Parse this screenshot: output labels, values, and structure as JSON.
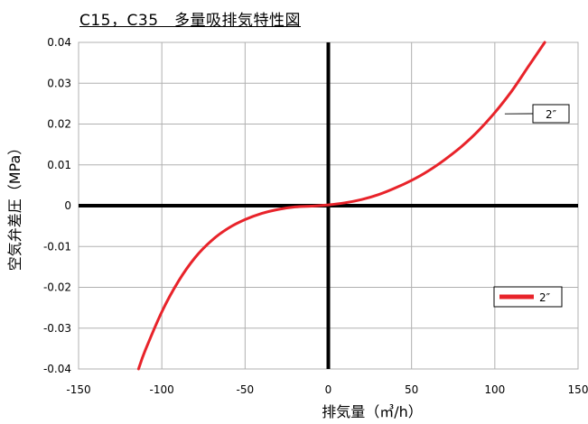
{
  "chart_data": {
    "type": "line",
    "title": "C15，C35　多量吸排気特性図",
    "xlabel": "排気量（㎥/h）",
    "ylabel": "空気弁差圧（MPa）",
    "xlim": [
      -150,
      150
    ],
    "ylim": [
      -0.04,
      0.04
    ],
    "x_ticks": [
      -150,
      -100,
      -50,
      0,
      50,
      100,
      150
    ],
    "x_tick_labels": [
      "-150",
      "-100",
      "-50",
      "0",
      "50",
      "100",
      "150"
    ],
    "y_ticks": [
      0.04,
      0.03,
      0.02,
      0.01,
      0,
      -0.01,
      -0.02,
      -0.03,
      -0.04
    ],
    "y_tick_labels": [
      "0.04",
      "0.03",
      "0.02",
      "0.01",
      "0",
      "-0.01",
      "-0.02",
      "-0.03",
      "-0.04"
    ],
    "grid": true,
    "legend_position": "bottom-right",
    "series": [
      {
        "name": "2″",
        "color": "#e8232a",
        "points": [
          [
            -114,
            -0.04
          ],
          [
            -110,
            -0.0355
          ],
          [
            -100,
            -0.026
          ],
          [
            -90,
            -0.0185
          ],
          [
            -80,
            -0.0127
          ],
          [
            -70,
            -0.0085
          ],
          [
            -60,
            -0.0055
          ],
          [
            -50,
            -0.0034
          ],
          [
            -40,
            -0.0019
          ],
          [
            -30,
            -0.0009
          ],
          [
            -20,
            -0.0003
          ],
          [
            -10,
            -0.0001
          ],
          [
            0,
            0.0002
          ],
          [
            10,
            0.0007
          ],
          [
            20,
            0.0015
          ],
          [
            30,
            0.0027
          ],
          [
            40,
            0.0043
          ],
          [
            50,
            0.0062
          ],
          [
            60,
            0.0085
          ],
          [
            70,
            0.0113
          ],
          [
            80,
            0.0145
          ],
          [
            90,
            0.0183
          ],
          [
            100,
            0.0228
          ],
          [
            110,
            0.028
          ],
          [
            120,
            0.034
          ],
          [
            130,
            0.04
          ]
        ]
      }
    ],
    "callout": {
      "text": "2″",
      "anchor": [
        106,
        0.0225
      ]
    },
    "legend": [
      {
        "label": "2″",
        "color": "#e8232a"
      }
    ]
  }
}
